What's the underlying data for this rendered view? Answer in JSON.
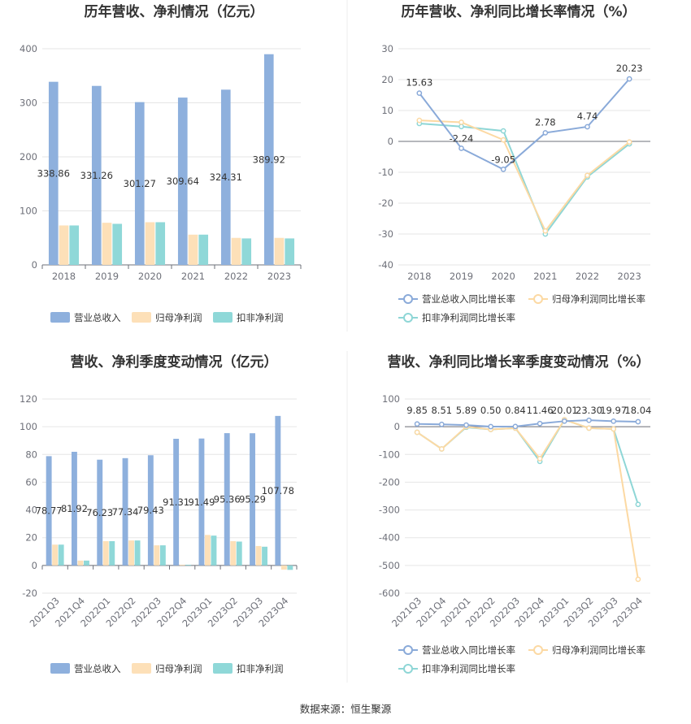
{
  "colors": {
    "revenue": "#8eb0dd",
    "parent": "#fde0b8",
    "deducted": "#8fd8d8",
    "revenue_line": "#8aaad9",
    "parent_line": "#fcd9a3",
    "deducted_line": "#8ed6d6"
  },
  "source": "数据来源：恒生聚源",
  "chart_data": [
    {
      "type": "bar",
      "title": "历年营收、净利情况（亿元）",
      "categories": [
        "2018",
        "2019",
        "2020",
        "2021",
        "2022",
        "2023"
      ],
      "ylim": [
        0,
        400
      ],
      "yticks": [
        0,
        100,
        200,
        300,
        400
      ],
      "series": [
        {
          "name": "营业总收入",
          "values": [
            338.86,
            331.26,
            301.27,
            309.64,
            324.31,
            389.92
          ],
          "labels": [
            "338.86",
            "331.26",
            "301.27",
            "309.64",
            "324.31",
            "389.92"
          ]
        },
        {
          "name": "归母净利润",
          "values": [
            73,
            78,
            79,
            56,
            50,
            50
          ]
        },
        {
          "name": "扣非净利润",
          "values": [
            73,
            76,
            79,
            56,
            49,
            49
          ]
        }
      ]
    },
    {
      "type": "line",
      "title": "历年营收、净利同比增长率情况（%）",
      "categories": [
        "2018",
        "2019",
        "2020",
        "2021",
        "2022",
        "2023"
      ],
      "ylim": [
        -40,
        30
      ],
      "yticks": [
        -40,
        -30,
        -20,
        -10,
        0,
        10,
        20,
        30
      ],
      "series": [
        {
          "name": "营业总收入同比增长率",
          "values": [
            15.63,
            -2.24,
            -9.05,
            2.78,
            4.74,
            20.23
          ],
          "labels": [
            "15.63",
            "-2.24",
            "-9.05",
            "2.78",
            "4.74",
            "20.23"
          ]
        },
        {
          "name": "归母净利润同比增长率",
          "values": [
            6.8,
            6.2,
            0.5,
            -29,
            -11,
            -0.2
          ]
        },
        {
          "name": "扣非净利润同比增长率",
          "values": [
            5.8,
            4.8,
            3.4,
            -30,
            -11.5,
            -0.8
          ]
        }
      ]
    },
    {
      "type": "bar",
      "title": "营收、净利季度变动情况（亿元）",
      "categories": [
        "2021Q3",
        "2021Q4",
        "2022Q1",
        "2022Q2",
        "2022Q3",
        "2022Q4",
        "2023Q1",
        "2023Q2",
        "2023Q3",
        "2023Q4"
      ],
      "ylim": [
        -20,
        120
      ],
      "yticks": [
        -20,
        0,
        20,
        40,
        60,
        80,
        100,
        120
      ],
      "series": [
        {
          "name": "营业总收入",
          "values": [
            78.77,
            81.92,
            76.23,
            77.34,
            79.43,
            91.31,
            91.49,
            95.36,
            95.29,
            107.78
          ],
          "labels": [
            "78.77",
            "81.92",
            "76.23",
            "77.34",
            "79.43",
            "91.31",
            "91.49",
            "95.36",
            "95.29",
            "107.78"
          ]
        },
        {
          "name": "归母净利润",
          "values": [
            15,
            3.5,
            17.5,
            18,
            14.5,
            0.5,
            22,
            17.5,
            14,
            -3
          ]
        },
        {
          "name": "扣非净利润",
          "values": [
            15,
            3.5,
            17.5,
            18,
            14.5,
            0.5,
            21.5,
            17.2,
            13.5,
            -3.2
          ]
        }
      ]
    },
    {
      "type": "line",
      "title": "营收、净利同比增长率季度变动情况（%）",
      "categories": [
        "2021Q3",
        "2021Q4",
        "2022Q1",
        "2022Q2",
        "2022Q3",
        "2022Q4",
        "2023Q1",
        "2023Q2",
        "2023Q3",
        "2023Q4"
      ],
      "ylim": [
        -600,
        100
      ],
      "yticks": [
        -600,
        -500,
        -400,
        -300,
        -200,
        -100,
        0,
        100
      ],
      "series": [
        {
          "name": "营业总收入同比增长率",
          "values": [
            9.85,
            8.51,
            5.89,
            0.5,
            0.84,
            11.46,
            20.01,
            23.3,
            19.97,
            18.04
          ],
          "labels": [
            "9.85",
            "8.51",
            "5.89",
            "0.50",
            "0.84",
            "11.46",
            "20.01",
            "23.30",
            "19.97",
            "18.04"
          ]
        },
        {
          "name": "归母净利润同比增长率",
          "values": [
            -20,
            -80,
            0,
            -10,
            -5,
            -115,
            25,
            -5,
            -8,
            -550
          ]
        },
        {
          "name": "扣非净利润同比增长率",
          "values": [
            -20,
            -80,
            -2,
            -10,
            -5,
            -125,
            25,
            -5,
            -8,
            -280
          ]
        }
      ]
    }
  ]
}
